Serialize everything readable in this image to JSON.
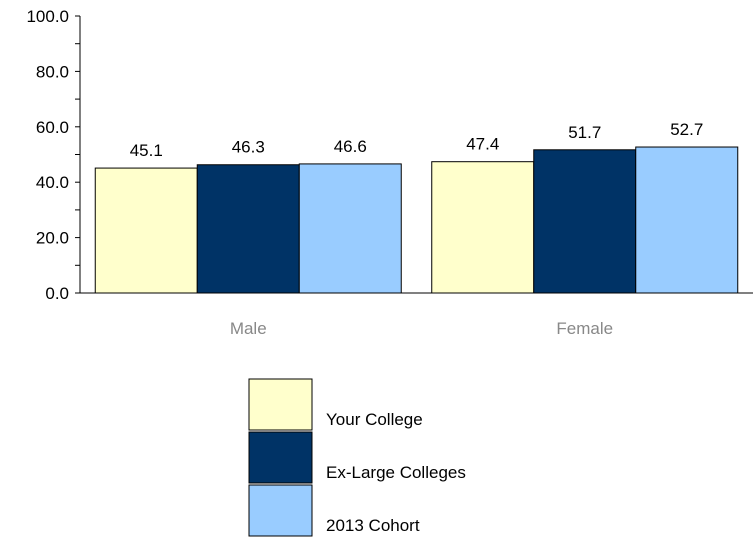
{
  "chart_data": {
    "type": "bar",
    "categories": [
      "Male",
      "Female"
    ],
    "series": [
      {
        "name": "Your College",
        "values": [
          45.1,
          47.4
        ],
        "color": "#FFFFCC"
      },
      {
        "name": "Ex-Large Colleges",
        "values": [
          46.3,
          51.7
        ],
        "color": "#003366"
      },
      {
        "name": "2013 Cohort",
        "values": [
          46.6,
          52.7
        ],
        "color": "#99CCFF"
      }
    ],
    "yticks": [
      "0.0",
      "20.0",
      "40.0",
      "60.0",
      "80.0",
      "100.0"
    ],
    "ylim": [
      0,
      100
    ],
    "major_tick_step": 20,
    "minor_tick_step": 10,
    "grid": false,
    "legend_position": "bottom"
  }
}
